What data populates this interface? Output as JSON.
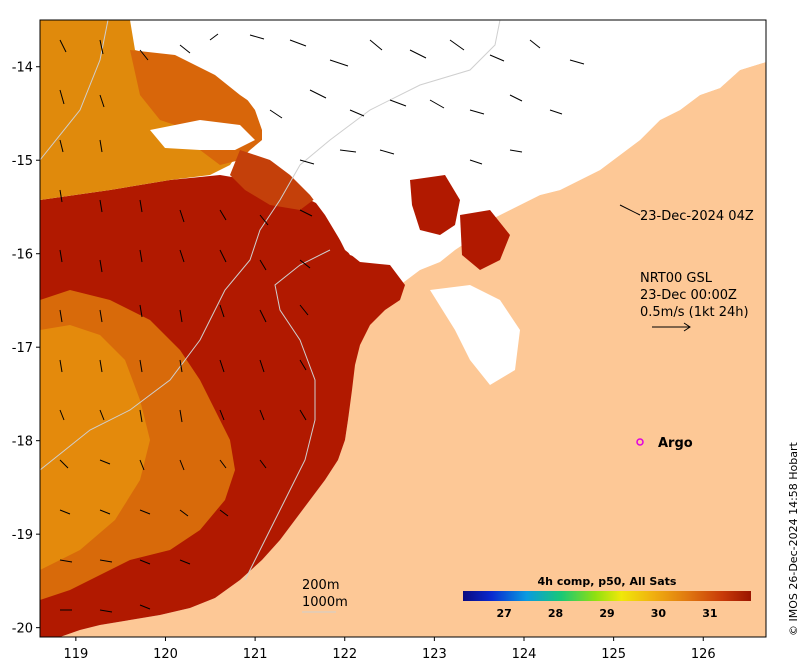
{
  "map": {
    "lon_ticks": [
      "119",
      "120",
      "121",
      "122",
      "123",
      "124",
      "125",
      "126"
    ],
    "lat_ticks": [
      "-14",
      "-15",
      "-16",
      "-17",
      "-18",
      "-19",
      "-20"
    ],
    "lon_range": [
      118.6,
      126.7
    ],
    "lat_range": [
      -20.1,
      -13.5
    ],
    "colors": {
      "land": "#fdc896",
      "sst_hot": "#b11900",
      "sst_warm": "#d85c0a",
      "sst_orange": "#e9900c",
      "contour": "#cfcfcf",
      "argo": "#e000e0"
    }
  },
  "annotations": {
    "timestamp": "23-Dec-2024 04Z",
    "current_source": "NRT00 GSL",
    "current_time": "23-Dec 00:00Z",
    "current_scale": "0.5m/s (1kt 24h)",
    "argo_label": "Argo",
    "contour_200": "200m",
    "contour_1000": "1000m"
  },
  "colorbar": {
    "title": "4h comp, p50, All Sats",
    "ticks": [
      "27",
      "28",
      "29",
      "30",
      "31"
    ],
    "value_range": [
      26.2,
      31.8
    ],
    "stops": [
      "#0a0a80",
      "#0a2ad0",
      "#0a9ae0",
      "#18c878",
      "#90e010",
      "#f0e80a",
      "#f0b010",
      "#e07810",
      "#c83a08",
      "#9a1500"
    ]
  },
  "credit": "© IMOS 26-Dec-2024 14:58 Hobart"
}
